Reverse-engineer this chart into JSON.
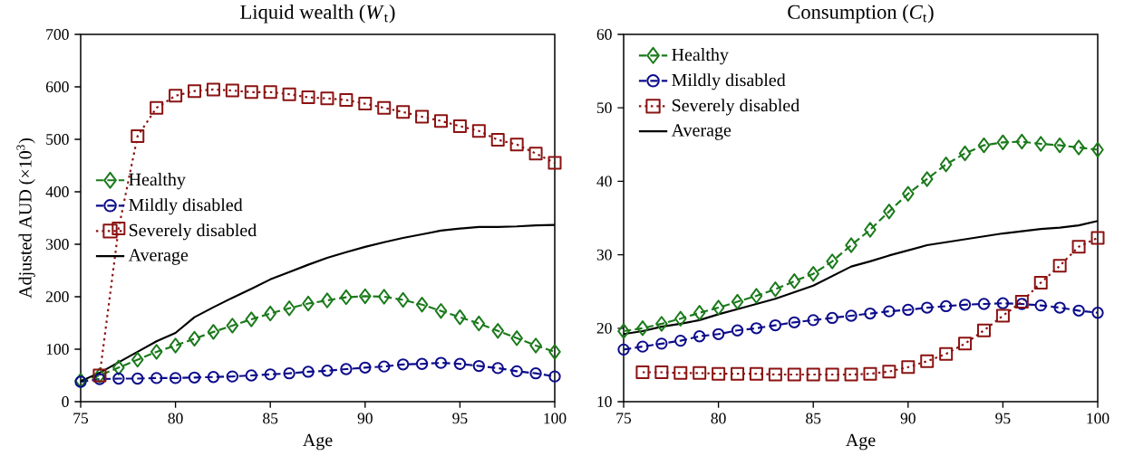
{
  "chart_data": [
    {
      "type": "line",
      "title": "Liquid wealth (*W*$_{t}$)",
      "xlabel": "Age",
      "ylabel": "Adjusted AUD (×10$^{3}$)",
      "x": [
        75,
        76,
        77,
        78,
        79,
        80,
        81,
        82,
        83,
        84,
        85,
        86,
        87,
        88,
        89,
        90,
        91,
        92,
        93,
        94,
        95,
        96,
        97,
        98,
        99,
        100
      ],
      "xlim": [
        75,
        100
      ],
      "xticks": [
        75,
        80,
        85,
        90,
        95,
        100
      ],
      "ylim": [
        0,
        700
      ],
      "yticks": [
        0,
        100,
        200,
        300,
        400,
        500,
        600,
        700
      ],
      "legend": "center left",
      "grid": false,
      "series": [
        {
          "name": "Healthy",
          "color": "#1b7a1b",
          "marker": "diamond",
          "line_style": "dashed",
          "values": [
            40,
            50,
            65,
            80,
            95,
            107,
            120,
            133,
            145,
            157,
            168,
            178,
            187,
            193,
            199,
            201,
            200,
            194,
            185,
            173,
            161,
            149,
            135,
            121,
            107,
            95
          ]
        },
        {
          "name": "Mildly disabled",
          "color": "#0c0c8c",
          "marker": "circle",
          "line_style": "dashed",
          "values": [
            38,
            43,
            44,
            44,
            45,
            45,
            46,
            47,
            48,
            50,
            52,
            54,
            57,
            59,
            62,
            65,
            67,
            71,
            72,
            74,
            72,
            68,
            64,
            58,
            54,
            48
          ]
        },
        {
          "name": "Severely disabled",
          "color": "#8c1212",
          "marker": "square",
          "line_style": "dotted",
          "values": [
            null,
            50,
            330,
            506,
            560,
            583,
            592,
            595,
            593,
            590,
            590,
            586,
            580,
            578,
            575,
            568,
            560,
            552,
            543,
            535,
            525,
            516,
            499,
            490,
            473,
            455
          ]
        },
        {
          "name": "Average",
          "color": "#000000",
          "marker": "none",
          "line_style": "solid",
          "values": [
            39,
            55,
            75,
            95,
            115,
            131,
            161,
            180,
            198,
            215,
            233,
            247,
            261,
            274,
            285,
            295,
            304,
            312,
            319,
            326,
            330,
            333,
            333,
            334,
            336,
            337
          ]
        }
      ]
    },
    {
      "type": "line",
      "title": "Consumption (*C*$_{t}$)",
      "xlabel": "Age",
      "x": [
        75,
        76,
        77,
        78,
        79,
        80,
        81,
        82,
        83,
        84,
        85,
        86,
        87,
        88,
        89,
        90,
        91,
        92,
        93,
        94,
        95,
        96,
        97,
        98,
        99,
        100
      ],
      "xlim": [
        75,
        100
      ],
      "xticks": [
        75,
        80,
        85,
        90,
        95,
        100
      ],
      "ylim": [
        10,
        60
      ],
      "yticks": [
        10,
        20,
        30,
        40,
        50,
        60
      ],
      "legend": "top left",
      "grid": false,
      "series": [
        {
          "name": "Healthy",
          "color": "#1b7a1b",
          "marker": "diamond",
          "line_style": "dashed",
          "values": [
            19.6,
            20.0,
            20.6,
            21.3,
            22.1,
            22.8,
            23.6,
            24.4,
            25.3,
            26.4,
            27.4,
            29.1,
            31.3,
            33.4,
            35.9,
            38.3,
            40.3,
            42.3,
            43.8,
            44.9,
            45.3,
            45.4,
            45.1,
            44.9,
            44.6,
            44.3
          ]
        },
        {
          "name": "Mildly disabled",
          "color": "#0c0c8c",
          "marker": "circle",
          "line_style": "dashed",
          "values": [
            17.1,
            17.5,
            17.9,
            18.3,
            18.9,
            19.2,
            19.7,
            20.0,
            20.4,
            20.8,
            21.1,
            21.4,
            21.7,
            22.0,
            22.3,
            22.5,
            22.8,
            23.0,
            23.2,
            23.3,
            23.4,
            23.3,
            23.1,
            22.8,
            22.4,
            22.1
          ]
        },
        {
          "name": "Severely disabled",
          "color": "#8c1212",
          "marker": "square",
          "line_style": "dotted",
          "values": [
            null,
            14.0,
            14.0,
            13.9,
            13.9,
            13.8,
            13.8,
            13.8,
            13.7,
            13.7,
            13.7,
            13.7,
            13.7,
            13.8,
            14.1,
            14.7,
            15.5,
            16.5,
            17.9,
            19.7,
            21.7,
            23.6,
            26.2,
            28.5,
            31.1,
            32.3
          ]
        },
        {
          "name": "Average",
          "color": "#000000",
          "marker": "none",
          "line_style": "solid",
          "values": [
            19.2,
            19.6,
            20.2,
            20.6,
            21.1,
            21.9,
            22.6,
            23.3,
            24.0,
            24.9,
            25.8,
            27.1,
            28.4,
            29.1,
            29.9,
            30.6,
            31.3,
            31.7,
            32.1,
            32.5,
            32.9,
            33.2,
            33.5,
            33.7,
            34.0,
            34.6
          ]
        }
      ]
    }
  ]
}
